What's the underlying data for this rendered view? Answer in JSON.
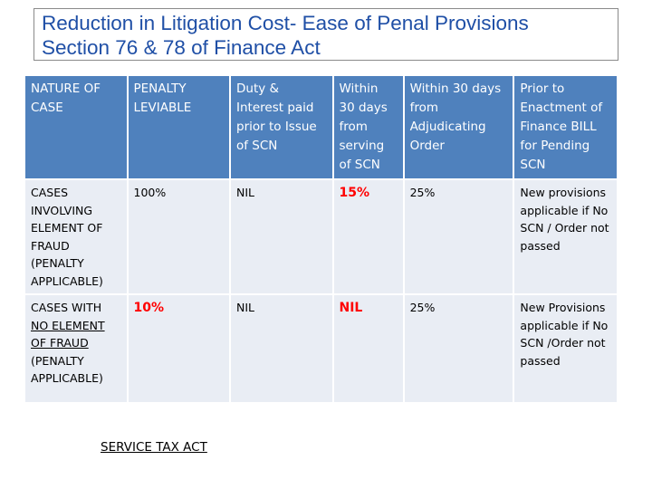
{
  "title": {
    "line1": "Reduction in Litigation Cost- Ease of Penal Provisions",
    "line2": "Section 76 & 78 of Finance Act"
  },
  "table": {
    "headers": [
      "NATURE OF CASE",
      "PENALTY LEVIABLE",
      "Duty & Interest paid prior to Issue of SCN",
      "Within 30 days from serving of SCN",
      "Within 30 days from Adjudicating Order",
      "Prior to Enactment of Finance BILL for Pending SCN"
    ],
    "row1": {
      "nature": "CASES INVOLVING ELEMENT OF FRAUD (PENALTY APPLICABLE)",
      "penalty": "100%",
      "duty_interest": "NIL",
      "within_30_scn": "15%",
      "within_30_order": "25%",
      "prior_enactment": "New provisions applicable if No SCN / Order not passed"
    },
    "row2": {
      "nature_prefix": "CASES WITH",
      "nature_underlined": "NO ELEMENT OF FRAUD",
      "nature_suffix": "(PENALTY APPLICABLE)",
      "penalty": "10%",
      "duty_interest": "NIL",
      "within_30_scn": "NIL",
      "within_30_order": "25%",
      "prior_enactment": "New Provisions applicable if No SCN /Order not passed"
    }
  },
  "footer": "SERVICE TAX ACT"
}
